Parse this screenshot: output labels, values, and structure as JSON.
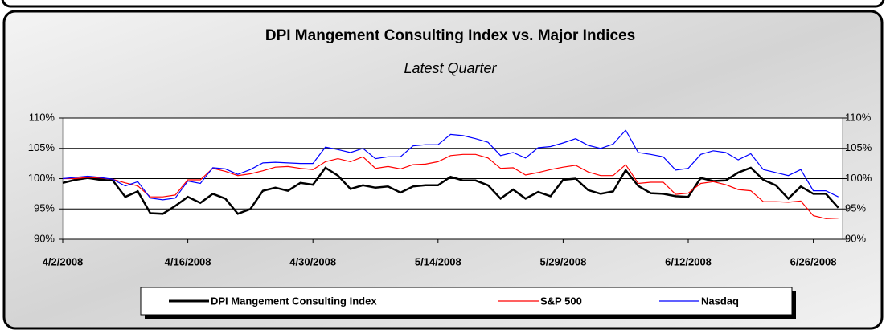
{
  "chart_data": {
    "type": "line",
    "title": "DPI Mangement Consulting Index vs. Major Indices",
    "subtitle": "Latest Quarter",
    "categories": [
      "4/2/2008",
      null,
      null,
      null,
      null,
      null,
      null,
      null,
      null,
      null,
      "4/16/2008",
      null,
      null,
      null,
      null,
      null,
      null,
      null,
      null,
      null,
      "4/30/2008",
      null,
      null,
      null,
      null,
      null,
      null,
      null,
      null,
      null,
      "5/14/2008",
      null,
      null,
      null,
      null,
      null,
      null,
      null,
      null,
      null,
      "5/29/2008",
      null,
      null,
      null,
      null,
      null,
      null,
      null,
      null,
      null,
      "6/12/2008",
      null,
      null,
      null,
      null,
      null,
      null,
      null,
      null,
      null,
      "6/26/2008",
      null,
      null
    ],
    "series": [
      {
        "name": "DPI Mangement Consulting Index",
        "color": "#000000",
        "values": [
          99.3,
          99.8,
          100.1,
          99.8,
          99.7,
          97,
          97.9,
          94.3,
          94.2,
          95.5,
          97,
          96,
          97.5,
          96.7,
          94.2,
          95,
          98,
          98.5,
          98,
          99.3,
          99,
          101.8,
          100.5,
          98.3,
          98.9,
          98.5,
          98.7,
          97.7,
          98.7,
          98.9,
          98.9,
          100.3,
          99.7,
          99.7,
          98.9,
          96.7,
          98.2,
          96.7,
          97.8,
          97.1,
          99.8,
          100,
          98.1,
          97.5,
          97.9,
          101.4,
          98.8,
          97.6,
          97.5,
          97.1,
          97,
          100.1,
          99.6,
          99.7,
          101,
          101.8,
          99.8,
          98.9,
          96.7,
          98.7,
          97.5,
          97.5,
          95.2
        ]
      },
      {
        "name": "S&P 500",
        "color": "#ff0000",
        "values": [
          100,
          100,
          100.2,
          100.1,
          99.9,
          99.3,
          98.8,
          97,
          97,
          97.3,
          99.8,
          99.8,
          101.7,
          101.2,
          100.5,
          100.8,
          101.3,
          101.9,
          102,
          101.7,
          101.5,
          102.8,
          103.3,
          102.8,
          103.6,
          101.7,
          102,
          101.6,
          102.3,
          102.4,
          102.8,
          103.8,
          104,
          104,
          103.4,
          101.7,
          101.8,
          100.6,
          101,
          101.5,
          101.9,
          102.2,
          101.1,
          100.5,
          100.5,
          102.3,
          99.2,
          99.4,
          99.4,
          97.4,
          97.6,
          99.2,
          99.5,
          99,
          98.2,
          98,
          96.2,
          96.2,
          96.1,
          96.3,
          93.9,
          93.4,
          93.5
        ]
      },
      {
        "name": "Nasdaq",
        "color": "#0000ff",
        "values": [
          100,
          100.2,
          100.4,
          100.2,
          99.9,
          98.8,
          99.5,
          96.8,
          96.5,
          96.8,
          99.6,
          99.2,
          101.8,
          101.6,
          100.7,
          101.5,
          102.6,
          102.7,
          102.6,
          102.5,
          102.5,
          105.2,
          104.8,
          104.3,
          105,
          103.3,
          103.6,
          103.6,
          105.4,
          105.6,
          105.6,
          107.3,
          107.1,
          106.6,
          106,
          103.8,
          104.3,
          103.4,
          105.1,
          105.3,
          105.9,
          106.6,
          105.5,
          105,
          105.7,
          108,
          104.3,
          104,
          103.6,
          101.4,
          101.7,
          104,
          104.6,
          104.3,
          103.1,
          104.1,
          101.5,
          101,
          100.5,
          101.5,
          98,
          98,
          97
        ]
      }
    ],
    "ylim": [
      90,
      110
    ],
    "yticks": [
      {
        "value": 90,
        "label": "90%"
      },
      {
        "value": 95,
        "label": "95%"
      },
      {
        "value": 100,
        "label": "100%"
      },
      {
        "value": 105,
        "label": "105%"
      },
      {
        "value": 110,
        "label": "110%"
      }
    ],
    "y2lim": [
      90,
      110
    ],
    "y2ticks": [
      {
        "value": 90,
        "label": "90%"
      },
      {
        "value": 95,
        "label": "95%"
      },
      {
        "value": 100,
        "label": "100%"
      },
      {
        "value": 105,
        "label": "105%"
      },
      {
        "value": 110,
        "label": "110%"
      }
    ],
    "grid": true,
    "legend": "bottom"
  }
}
